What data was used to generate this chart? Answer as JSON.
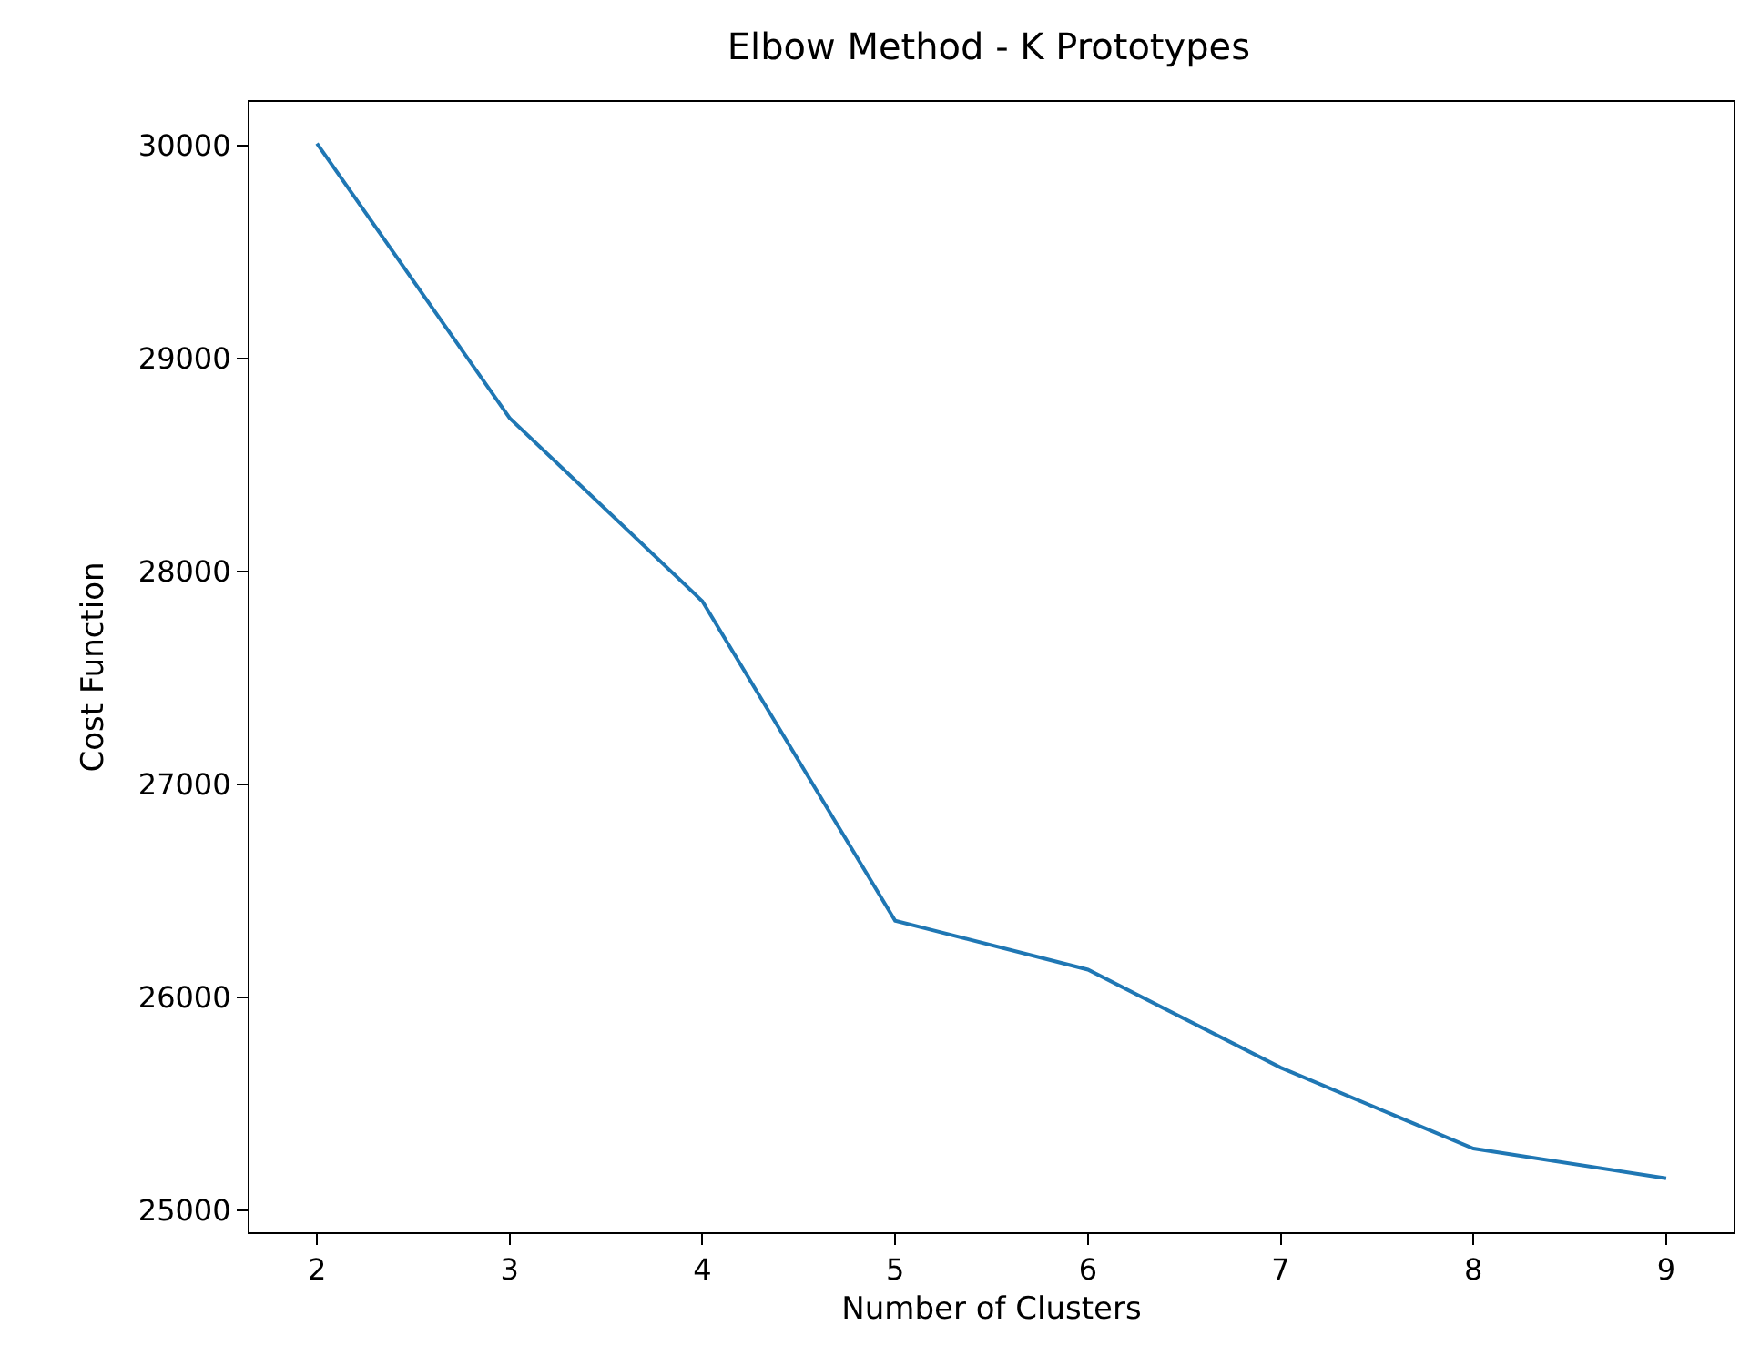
{
  "chart_data": {
    "type": "line",
    "title": "Elbow Method - K Prototypes",
    "xlabel": "Number of Clusters",
    "ylabel": "Cost Function",
    "x": [
      2,
      3,
      4,
      5,
      6,
      7,
      8,
      9
    ],
    "series": [
      {
        "color": "#1f77b4",
        "values": [
          30010,
          28720,
          27860,
          26360,
          26130,
          25670,
          25290,
          25150
        ]
      }
    ],
    "xlim": [
      1.65,
      9.35
    ],
    "xticks": [
      2,
      3,
      4,
      5,
      6,
      7,
      8,
      9
    ],
    "ylim": [
      24897,
      30205
    ],
    "yticks": [
      25000,
      26000,
      27000,
      28000,
      29000,
      30000
    ],
    "grid": false,
    "marker": "none",
    "line_style": "solid"
  }
}
